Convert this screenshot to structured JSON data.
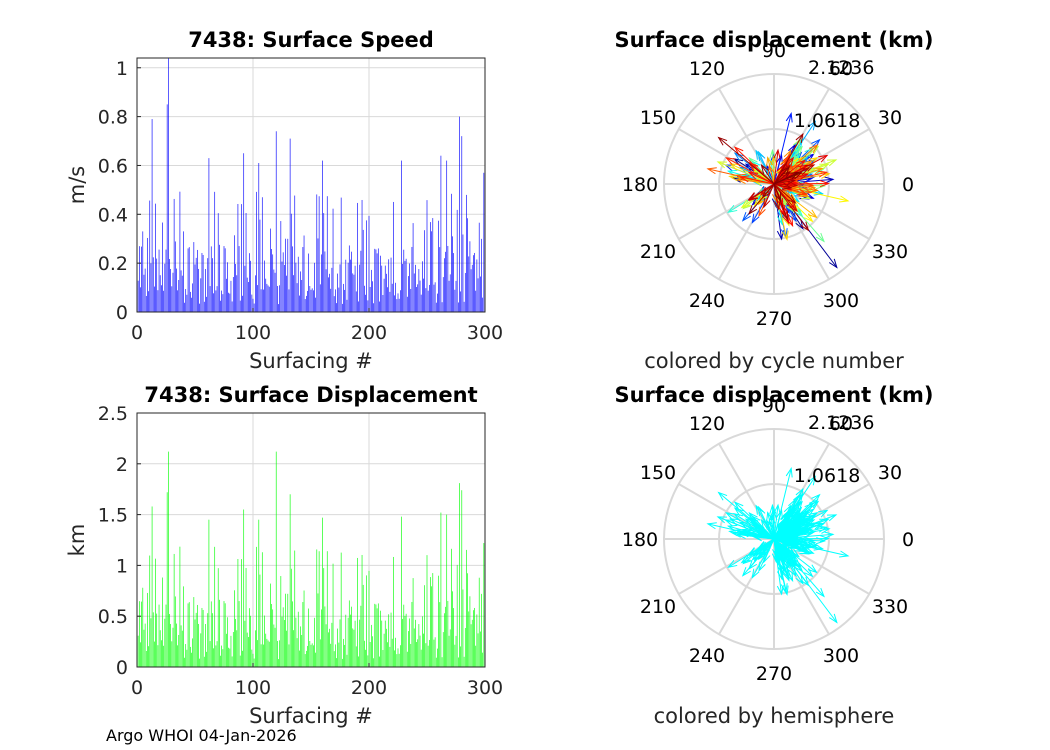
{
  "footer": "Argo WHOI 04-Jan-2026",
  "colors": {
    "speed": "#0000ff",
    "displacement": "#00ff00",
    "hemisphere": "#00ffff",
    "grid": "#d9d9d9",
    "axis": "#262626"
  },
  "chart_data": [
    {
      "type": "bar",
      "title": "7438: Surface Speed",
      "xlabel": "Surfacing #",
      "ylabel": "m/s",
      "xlim": [
        0,
        300
      ],
      "ylim": [
        0,
        1.04
      ],
      "xticks": [
        "0",
        "100",
        "200",
        "300"
      ],
      "xtick_values": [
        0,
        100,
        200,
        300
      ],
      "yticks": [
        "0",
        "0.2",
        "0.4",
        "0.6",
        "0.8",
        "1"
      ],
      "ytick_values": [
        0,
        0.2,
        0.4,
        0.6,
        0.8,
        1
      ],
      "color": "#0000ff",
      "n": 300,
      "peaks": [
        [
          5,
          0.33
        ],
        [
          13,
          0.79
        ],
        [
          27,
          1.04
        ],
        [
          26,
          0.85
        ],
        [
          62,
          0.63
        ],
        [
          92,
          0.65
        ],
        [
          105,
          0.61
        ],
        [
          120,
          0.74
        ],
        [
          132,
          0.71
        ],
        [
          160,
          0.62
        ],
        [
          228,
          0.62
        ],
        [
          262,
          0.64
        ],
        [
          267,
          0.62
        ],
        [
          278,
          0.8
        ],
        [
          280,
          0.72
        ],
        [
          299,
          0.57
        ]
      ]
    },
    {
      "type": "bar",
      "title": "7438: Surface Displacement",
      "xlabel": "Surfacing #",
      "ylabel": "km",
      "xlim": [
        0,
        300
      ],
      "ylim": [
        0,
        2.5
      ],
      "xticks": [
        "0",
        "100",
        "200",
        "300"
      ],
      "xtick_values": [
        0,
        100,
        200,
        300
      ],
      "yticks": [
        "0",
        "0.5",
        "1",
        "1.5",
        "2",
        "2.5"
      ],
      "ytick_values": [
        0,
        0.5,
        1,
        1.5,
        2,
        2.5
      ],
      "color": "#00ff00",
      "n": 300,
      "peaks": [
        [
          5,
          0.78
        ],
        [
          13,
          1.58
        ],
        [
          27,
          2.12
        ],
        [
          26,
          1.72
        ],
        [
          62,
          1.45
        ],
        [
          92,
          1.55
        ],
        [
          105,
          1.45
        ],
        [
          120,
          2.12
        ],
        [
          132,
          1.7
        ],
        [
          160,
          1.47
        ],
        [
          228,
          1.48
        ],
        [
          262,
          1.52
        ],
        [
          267,
          1.5
        ],
        [
          278,
          1.81
        ],
        [
          280,
          1.74
        ],
        [
          299,
          1.22
        ]
      ]
    },
    {
      "type": "polar-vector",
      "title": "Surface displacement (km)",
      "caption": "colored by cycle number",
      "rmax": 2.1236,
      "ring_labels": [
        "1.0618",
        "2.1236"
      ],
      "ring_values": [
        1.0618,
        2.1236
      ],
      "angle_labels": [
        "0",
        "30",
        "60",
        "90",
        "120",
        "150",
        "180",
        "210",
        "240",
        "270",
        "300",
        "330"
      ],
      "angle_values": [
        0,
        30,
        60,
        90,
        120,
        150,
        180,
        210,
        240,
        270,
        300,
        330
      ],
      "colormap": "jet",
      "vector_count": 300
    },
    {
      "type": "polar-vector",
      "title": "Surface displacement (km)",
      "caption": "colored by hemisphere",
      "rmax": 2.1236,
      "ring_labels": [
        "1.0618",
        "2.1236"
      ],
      "ring_values": [
        1.0618,
        2.1236
      ],
      "angle_labels": [
        "0",
        "30",
        "60",
        "90",
        "120",
        "150",
        "180",
        "210",
        "240",
        "270",
        "300",
        "330"
      ],
      "angle_values": [
        0,
        30,
        60,
        90,
        120,
        150,
        180,
        210,
        240,
        270,
        300,
        330
      ],
      "colormap": "cyan",
      "vector_count": 300
    }
  ]
}
